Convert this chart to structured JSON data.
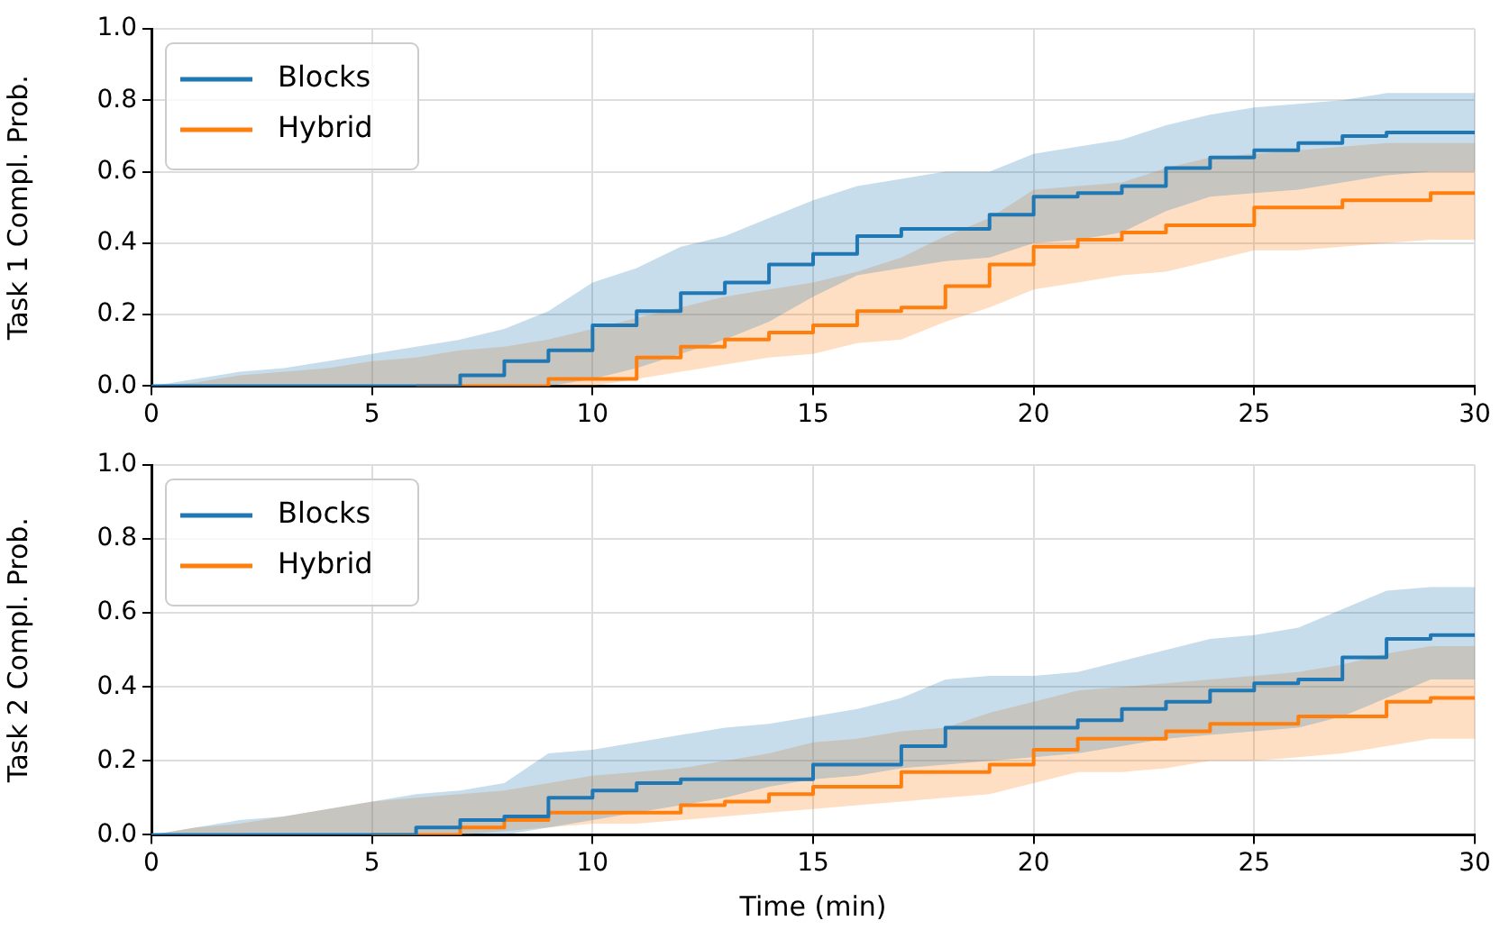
{
  "chart_data": [
    {
      "type": "step",
      "ylabel": "Task 1 Compl. Prob.",
      "x": [
        0,
        1,
        2,
        3,
        4,
        5,
        6,
        7,
        8,
        9,
        10,
        11,
        12,
        13,
        14,
        15,
        16,
        17,
        18,
        19,
        20,
        21,
        22,
        23,
        24,
        25,
        26,
        27,
        28,
        29,
        30
      ],
      "xlim": [
        0,
        30
      ],
      "ylim": [
        0,
        1
      ],
      "xticks": [
        0,
        5,
        10,
        15,
        20,
        25,
        30
      ],
      "yticks": [
        {
          "value": 0,
          "label": "0.0"
        },
        {
          "value": 0.2,
          "label": "0.2"
        },
        {
          "value": 0.4,
          "label": "0.4"
        },
        {
          "value": 0.6,
          "label": "0.6"
        },
        {
          "value": 0.8,
          "label": "0.8"
        },
        {
          "value": 1,
          "label": "1.0"
        }
      ],
      "grid": true,
      "legend": "top left",
      "series": [
        {
          "name": "Blocks",
          "color": "#1f77b4",
          "values": [
            0,
            0,
            0,
            0,
            0,
            0,
            0,
            0.03,
            0.07,
            0.1,
            0.17,
            0.21,
            0.26,
            0.29,
            0.34,
            0.37,
            0.42,
            0.44,
            0.44,
            0.48,
            0.53,
            0.54,
            0.56,
            0.61,
            0.64,
            0.66,
            0.68,
            0.7,
            0.71,
            0.71,
            0.71
          ],
          "lower": [
            0,
            0,
            0,
            0,
            0,
            0,
            0,
            0,
            0,
            0,
            0.02,
            0.05,
            0.09,
            0.13,
            0.18,
            0.25,
            0.31,
            0.33,
            0.35,
            0.36,
            0.4,
            0.41,
            0.43,
            0.49,
            0.53,
            0.54,
            0.55,
            0.57,
            0.59,
            0.6,
            0.6
          ],
          "upper": [
            0,
            0.02,
            0.04,
            0.05,
            0.07,
            0.09,
            0.11,
            0.13,
            0.16,
            0.21,
            0.29,
            0.33,
            0.39,
            0.42,
            0.47,
            0.52,
            0.56,
            0.58,
            0.6,
            0.6,
            0.65,
            0.67,
            0.69,
            0.73,
            0.76,
            0.78,
            0.79,
            0.8,
            0.82,
            0.82,
            0.82
          ]
        },
        {
          "name": "Hybrid",
          "color": "#ff7f0e",
          "values": [
            null,
            null,
            null,
            null,
            null,
            null,
            0,
            0,
            0,
            0.02,
            0.02,
            0.08,
            0.11,
            0.13,
            0.15,
            0.17,
            0.21,
            0.22,
            0.28,
            0.34,
            0.39,
            0.41,
            0.43,
            0.45,
            0.45,
            0.5,
            0.5,
            0.52,
            0.52,
            0.54,
            0.54
          ],
          "lower": [
            0,
            0,
            0,
            0,
            0,
            0,
            0,
            0,
            0,
            0,
            0,
            0.02,
            0.04,
            0.06,
            0.08,
            0.09,
            0.12,
            0.13,
            0.18,
            0.22,
            0.27,
            0.29,
            0.31,
            0.32,
            0.35,
            0.38,
            0.38,
            0.39,
            0.4,
            0.41,
            0.41
          ],
          "upper": [
            0,
            0.01,
            0.03,
            0.04,
            0.05,
            0.07,
            0.08,
            0.1,
            0.11,
            0.13,
            0.16,
            0.19,
            0.22,
            0.25,
            0.27,
            0.29,
            0.32,
            0.36,
            0.42,
            0.47,
            0.55,
            0.56,
            0.57,
            0.61,
            0.64,
            0.65,
            0.66,
            0.67,
            0.68,
            0.68,
            0.68
          ]
        }
      ]
    },
    {
      "type": "step",
      "xlabel": "Time (min)",
      "ylabel": "Task 2 Compl. Prob.",
      "x": [
        0,
        1,
        2,
        3,
        4,
        5,
        6,
        7,
        8,
        9,
        10,
        11,
        12,
        13,
        14,
        15,
        16,
        17,
        18,
        19,
        20,
        21,
        22,
        23,
        24,
        25,
        26,
        27,
        28,
        29,
        30
      ],
      "xlim": [
        0,
        30
      ],
      "ylim": [
        0,
        1
      ],
      "xticks": [
        0,
        5,
        10,
        15,
        20,
        25,
        30
      ],
      "yticks": [
        {
          "value": 0,
          "label": "0.0"
        },
        {
          "value": 0.2,
          "label": "0.2"
        },
        {
          "value": 0.4,
          "label": "0.4"
        },
        {
          "value": 0.6,
          "label": "0.6"
        },
        {
          "value": 0.8,
          "label": "0.8"
        },
        {
          "value": 1,
          "label": "1.0"
        }
      ],
      "grid": true,
      "legend": "top left",
      "series": [
        {
          "name": "Blocks",
          "color": "#1f77b4",
          "values": [
            0,
            0,
            0,
            0,
            0,
            0,
            0.02,
            0.04,
            0.05,
            0.1,
            0.12,
            0.14,
            0.15,
            0.15,
            0.15,
            0.19,
            0.19,
            0.24,
            0.29,
            0.29,
            0.29,
            0.31,
            0.34,
            0.36,
            0.39,
            0.41,
            0.42,
            0.48,
            0.53,
            0.54,
            0.54
          ],
          "lower": [
            0,
            0,
            0,
            0,
            0,
            0,
            0,
            0,
            0,
            0.02,
            0.04,
            0.06,
            0.08,
            0.1,
            0.13,
            0.15,
            0.16,
            0.18,
            0.19,
            0.2,
            0.21,
            0.22,
            0.24,
            0.26,
            0.27,
            0.28,
            0.29,
            0.32,
            0.37,
            0.42,
            0.42
          ],
          "upper": [
            0,
            0.02,
            0.04,
            0.05,
            0.07,
            0.09,
            0.11,
            0.12,
            0.14,
            0.22,
            0.23,
            0.25,
            0.27,
            0.29,
            0.3,
            0.32,
            0.34,
            0.37,
            0.42,
            0.43,
            0.43,
            0.44,
            0.47,
            0.5,
            0.53,
            0.54,
            0.56,
            0.61,
            0.66,
            0.67,
            0.67
          ]
        },
        {
          "name": "Hybrid",
          "color": "#ff7f0e",
          "values": [
            null,
            null,
            null,
            null,
            null,
            0,
            0,
            0.02,
            0.04,
            0.06,
            0.06,
            0.06,
            0.08,
            0.09,
            0.11,
            0.13,
            0.13,
            0.17,
            0.17,
            0.19,
            0.23,
            0.26,
            0.26,
            0.28,
            0.3,
            0.3,
            0.32,
            0.32,
            0.36,
            0.37,
            0.37
          ],
          "lower": [
            0,
            0,
            0,
            0,
            0,
            0,
            0,
            0,
            0.01,
            0.02,
            0.03,
            0.03,
            0.04,
            0.05,
            0.06,
            0.07,
            0.08,
            0.09,
            0.1,
            0.11,
            0.14,
            0.17,
            0.17,
            0.18,
            0.2,
            0.2,
            0.21,
            0.22,
            0.24,
            0.26,
            0.26
          ],
          "upper": [
            0,
            0.02,
            0.03,
            0.05,
            0.07,
            0.09,
            0.1,
            0.11,
            0.12,
            0.14,
            0.16,
            0.17,
            0.18,
            0.2,
            0.22,
            0.25,
            0.26,
            0.28,
            0.29,
            0.33,
            0.36,
            0.39,
            0.4,
            0.41,
            0.42,
            0.43,
            0.44,
            0.46,
            0.49,
            0.51,
            0.51
          ]
        }
      ]
    }
  ]
}
